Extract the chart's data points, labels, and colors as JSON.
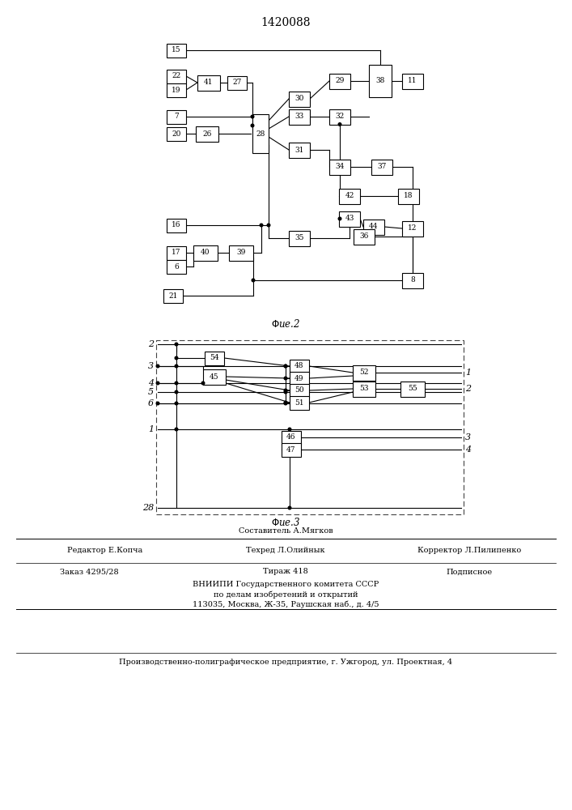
{
  "title": "1420088",
  "bg_color": "#ffffff",
  "box_color": "#000000",
  "line_color": "#000000",
  "footer": {
    "composer": "Составитель А.Мягков",
    "editor": "Редактор Е.Копча",
    "tech": "Техред Л.Олийнык",
    "corrector": "Корректор Л.Пилипенко",
    "order": "Заказ 4295/28",
    "circulation": "Тираж 418",
    "subscription": "Подписное",
    "org1": "ВНИИПИ Государственного комитета СССР",
    "org2": "по делам изобретений и открытий",
    "org3": "113035, Москва, Ж-35, Раушская наб., д. 4/5",
    "bottom": "Производственно-полиграфическое предприятие, г. Ужгород, ул. Проектная, 4"
  }
}
